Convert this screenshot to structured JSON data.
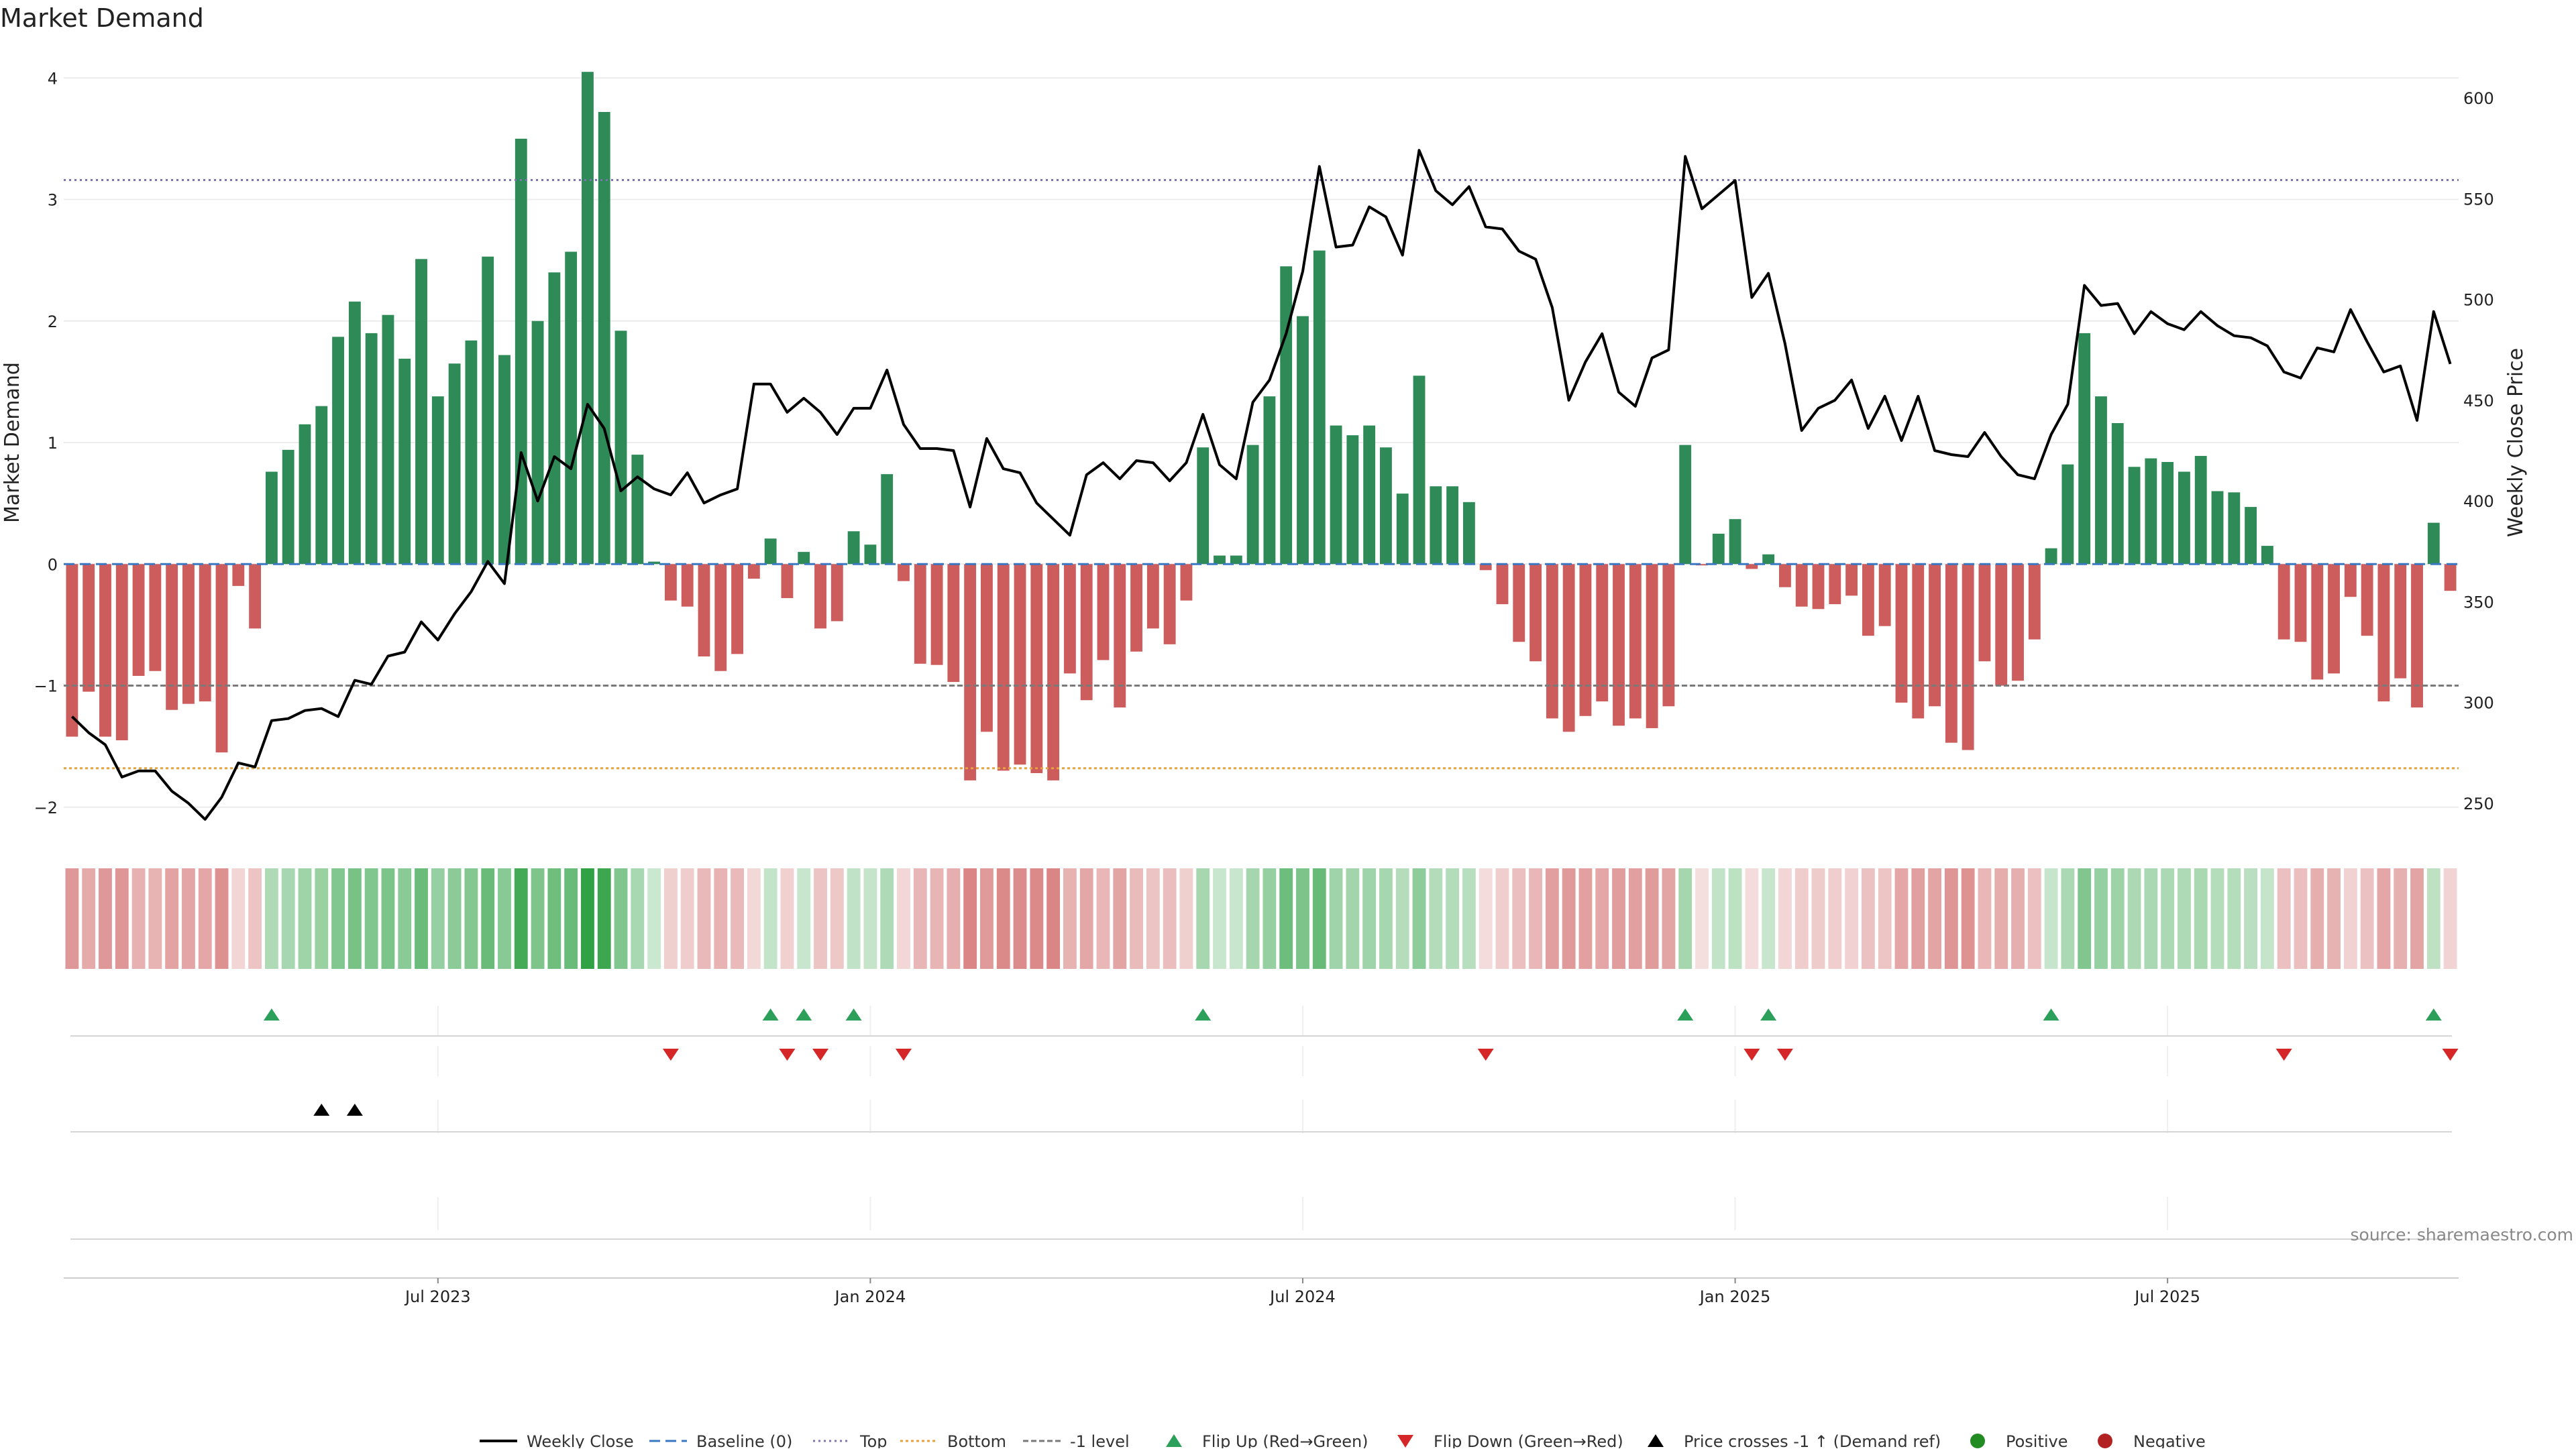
{
  "chart_data": {
    "type": "bar",
    "title": "Market Demand",
    "ylabel": "Market Demand",
    "y2label": "Weekly Close Price",
    "ylim": [
      -2.2,
      4.2
    ],
    "y2lim": [
      236,
      622
    ],
    "yticks": [
      -2,
      -1,
      0,
      1,
      2,
      3,
      4
    ],
    "yticks_labels": [
      "−2",
      "−1",
      "0",
      "1",
      "2",
      "3",
      "4"
    ],
    "y2ticks": [
      250,
      300,
      350,
      400,
      450,
      500,
      550,
      600
    ],
    "y2ticks_labels": [
      "250",
      "300",
      "350",
      "400",
      "450",
      "500",
      "550",
      "600"
    ],
    "xtick_labels": [
      "Jul 2023",
      "Jan 2024",
      "Jul 2024",
      "Jan 2025",
      "Jul 2025"
    ],
    "xtick_index": [
      22,
      48,
      74,
      100,
      126
    ],
    "reference_lines": {
      "baseline": 0,
      "top": 3.16,
      "bottom": -1.68,
      "minus_one": -1
    },
    "series": [
      {
        "name": "Market Demand",
        "values": [
          -1.42,
          -1.05,
          -1.42,
          -1.45,
          -0.92,
          -0.88,
          -1.2,
          -1.15,
          -1.13,
          -1.55,
          -0.18,
          -0.53,
          0.76,
          0.94,
          1.15,
          1.3,
          1.87,
          2.16,
          1.9,
          2.05,
          1.69,
          2.51,
          1.38,
          1.65,
          1.84,
          2.53,
          1.72,
          3.5,
          2.0,
          2.4,
          2.57,
          4.05,
          3.72,
          1.92,
          0.9,
          0.02,
          -0.3,
          -0.35,
          -0.76,
          -0.88,
          -0.74,
          -0.12,
          0.21,
          -0.28,
          0.1,
          -0.53,
          -0.47,
          0.27,
          0.16,
          0.74,
          -0.14,
          -0.82,
          -0.83,
          -0.97,
          -1.78,
          -1.38,
          -1.7,
          -1.65,
          -1.72,
          -1.78,
          -0.9,
          -1.12,
          -0.79,
          -1.18,
          -0.72,
          -0.53,
          -0.66,
          -0.3,
          0.96,
          0.07,
          0.07,
          0.98,
          1.38,
          2.45,
          2.04,
          2.58,
          1.14,
          1.06,
          1.14,
          0.96,
          0.58,
          1.55,
          0.64,
          0.64,
          0.51,
          -0.05,
          -0.33,
          -0.64,
          -0.8,
          -1.27,
          -1.38,
          -1.25,
          -1.13,
          -1.33,
          -1.27,
          -1.35,
          -1.17,
          0.98,
          -0.01,
          0.25,
          0.37,
          -0.04,
          0.08,
          -0.19,
          -0.35,
          -0.37,
          -0.33,
          -0.26,
          -0.59,
          -0.51,
          -1.14,
          -1.27,
          -1.17,
          -1.47,
          -1.53,
          -0.8,
          -1.0,
          -0.96,
          -0.62,
          0.13,
          0.82,
          1.9,
          1.38,
          1.16,
          0.8,
          0.87,
          0.84,
          0.76,
          0.89,
          0.6,
          0.59,
          0.47,
          0.15,
          -0.62,
          -0.64,
          -0.95,
          -0.9,
          -0.27,
          -0.59,
          -1.13,
          -0.94,
          -1.18,
          0.34,
          -0.22
        ]
      },
      {
        "name": "Weekly Close",
        "values": [
          293,
          285,
          279,
          263,
          266,
          266,
          256,
          250,
          242,
          253,
          270,
          268,
          291,
          292,
          296,
          297,
          293,
          311,
          309,
          323,
          325,
          340,
          331,
          344,
          355,
          370,
          359,
          424,
          400,
          422,
          416,
          448,
          436,
          405,
          412,
          406,
          403,
          414,
          399,
          403,
          406,
          458,
          458,
          444,
          451,
          444,
          433,
          446,
          446,
          465,
          438,
          426,
          426,
          425,
          397,
          431,
          416,
          414,
          399,
          391,
          383,
          413,
          419,
          411,
          420,
          419,
          410,
          419,
          443,
          418,
          411,
          449,
          460,
          483,
          514,
          566,
          526,
          527,
          546,
          541,
          522,
          574,
          554,
          547,
          556,
          536,
          535,
          524,
          520,
          496,
          450,
          469,
          483,
          454,
          447,
          471,
          475,
          571,
          545,
          552,
          559,
          501,
          513,
          478,
          435,
          446,
          450,
          460,
          436,
          452,
          430,
          452,
          425,
          423,
          422,
          434,
          422,
          413,
          411,
          433,
          448,
          507,
          497,
          498,
          483,
          494,
          488,
          485,
          494,
          487,
          482,
          481,
          477,
          464,
          461,
          476,
          474,
          495,
          479,
          464,
          467,
          440,
          494,
          468
        ]
      }
    ],
    "flip_up_index": [
      12,
      42,
      44,
      47,
      68,
      97,
      102,
      119,
      142
    ],
    "flip_down_index": [
      36,
      43,
      45,
      50,
      85,
      101,
      103,
      133,
      143
    ],
    "price_cross_index": [
      15,
      17
    ],
    "legend": [
      "Weekly Close",
      "Baseline (0)",
      "Top",
      "Bottom",
      "-1 level",
      "Flip Up (Red→Green)",
      "Flip Down (Green→Red)",
      "Price crosses -1 ↑ (Demand ref)",
      "Positive",
      "Negative"
    ],
    "source": "source: sharemaestro.com"
  },
  "colors": {
    "positive_bar": "#2e8b57",
    "negative_bar": "#cd5c5c",
    "price_line": "#000000",
    "baseline": "#3b78c4",
    "top": "#7b74b0",
    "bottom": "#e6a23c",
    "minus_one": "#7a7a7a",
    "flip_up": "#2ca05a",
    "flip_down": "#d62728",
    "price_cross": "#000000",
    "positive_dot": "#228b22",
    "negative_dot": "#b22222"
  }
}
